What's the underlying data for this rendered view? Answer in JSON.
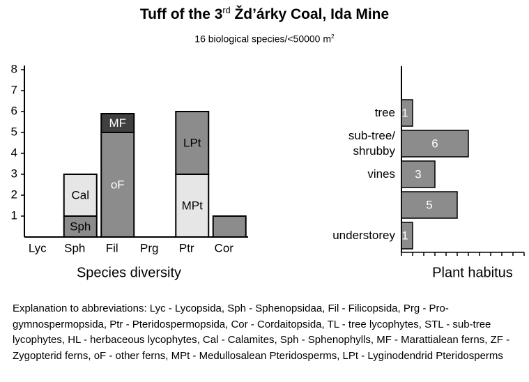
{
  "title": {
    "main": "Tuff of the 3",
    "superscript": "rd",
    "rest": " Žd’árky Coal, Ida Mine"
  },
  "subtitle": {
    "main": "16 biological species/<50000 m",
    "superscript": "2"
  },
  "chart_data": [
    {
      "type": "stacked-bar",
      "x_label": "Species diversity",
      "categories": [
        "Lyc",
        "Sph",
        "Fil",
        "Prg",
        "Ptr",
        "Cor"
      ],
      "segments": [
        [],
        [
          {
            "label": "Sph",
            "value": 1,
            "color": "#8c8c8c",
            "label_color": "#000"
          },
          {
            "label": "Cal",
            "value": 2,
            "color": "#e6e6e6",
            "label_color": "#000"
          }
        ],
        [
          {
            "label": "oF",
            "value": 5,
            "color": "#8c8c8c",
            "label_color": "#fff"
          },
          {
            "label": "MF",
            "value": 0.9,
            "color": "#404040",
            "label_color": "#fff"
          }
        ],
        [],
        [
          {
            "label": "MPt",
            "value": 3,
            "color": "#e6e6e6",
            "label_color": "#000"
          },
          {
            "label": "LPt",
            "value": 3,
            "color": "#8c8c8c",
            "label_color": "#000"
          }
        ],
        [
          {
            "value": 1,
            "color": "#8c8c8c"
          }
        ]
      ],
      "ylim": [
        0,
        8
      ],
      "yticks": [
        1,
        2,
        3,
        4,
        5,
        6,
        7,
        8
      ]
    },
    {
      "type": "hbar",
      "x_label": "Plant habitus",
      "categories": [
        "tree",
        "sub-tree/ shrubby",
        "vines",
        null,
        "understorey"
      ],
      "values": [
        1,
        6,
        3,
        5,
        1
      ],
      "color": "#8c8c8c",
      "xlim": [
        0,
        11
      ],
      "xticks": [
        0,
        1,
        2,
        3,
        4,
        5,
        6,
        7,
        8,
        9,
        10,
        11
      ]
    }
  ],
  "explanation": "Explanation to abbreviations: Lyc - Lycopsida, Sph - Sphenopsidaa, Fil - Filicopsida, Prg - Pro-gymnospermopsida, Ptr - Pteridospermopsida, Cor - Cordaitopsida, TL - tree lycophytes, STL - sub-tree lycophytes, HL - herbaceous lycophytes, Cal - Calamites, Sph - Sphenophylls, MF - Marattialean ferns, ZF - Zygopterid ferns, oF - other ferns, MPt - Medullosalean Pteridosperms, LPt - Lyginodendrid Pteridosperms"
}
